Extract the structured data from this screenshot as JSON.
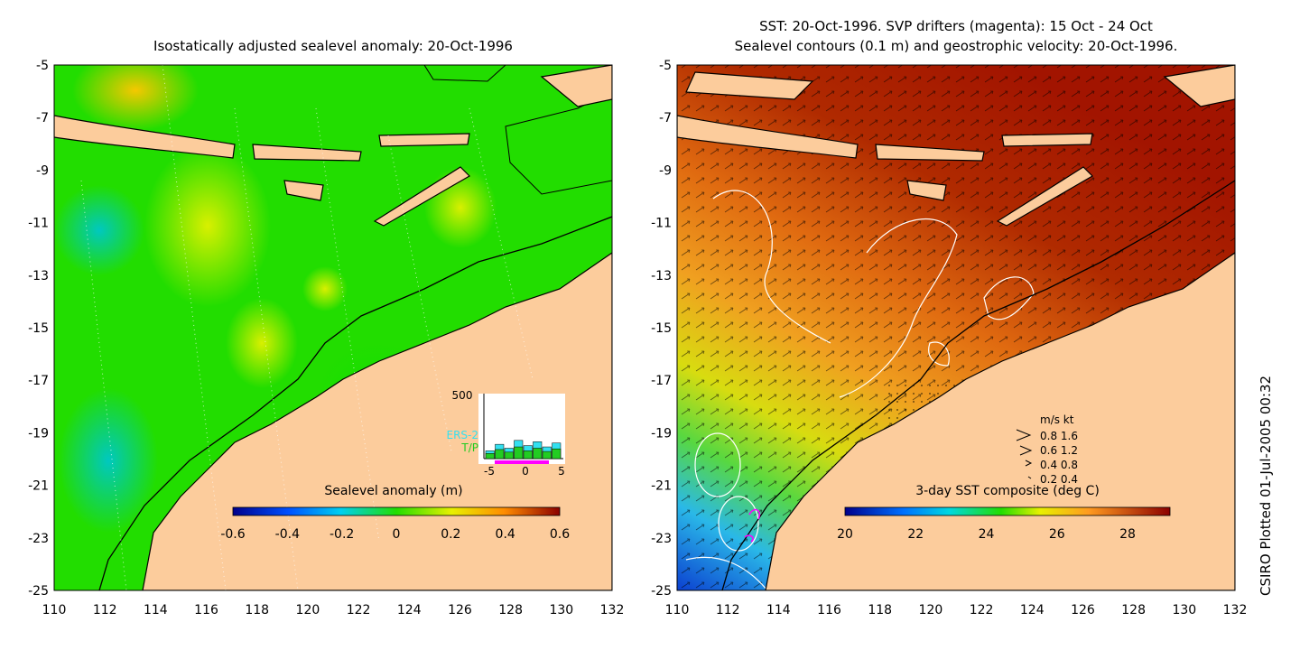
{
  "left": {
    "title": "Isostatically adjusted sealevel anomaly: 20-Oct-1996",
    "colorbar_label": "Sealevel anomaly (m)",
    "colorbar_ticks": [
      "-0.6",
      "-0.4",
      "-0.2",
      "0",
      "0.2",
      "0.4",
      "0.6"
    ],
    "inset": {
      "ymax_label": "500",
      "x_ticks": [
        "-5",
        "0",
        "5"
      ],
      "legend": [
        {
          "label": "ERS-2",
          "color": "#33e0f0"
        },
        {
          "label": "T/P",
          "color": "#22cc22"
        }
      ],
      "ers2_counts": [
        60,
        110,
        80,
        140,
        100,
        130,
        90,
        120
      ],
      "tp_counts": [
        40,
        70,
        50,
        90,
        60,
        80,
        55,
        75
      ]
    }
  },
  "right": {
    "title_line1": "SST: 20-Oct-1996. SVP drifters (magenta): 15 Oct - 24 Oct",
    "title_line2": "Sealevel contours (0.1 m) and geostrophic velocity: 20-Oct-1996.",
    "colorbar_label": "3-day SST composite (deg C)",
    "colorbar_ticks": [
      "20",
      "22",
      "24",
      "26",
      "28"
    ],
    "velocity_legend": {
      "header": "m/s  kt",
      "rows": [
        "0.8  1.6",
        "0.6  1.2",
        "0.4  0.8",
        "0.2  0.4"
      ]
    }
  },
  "axes": {
    "x_ticks": [
      "110",
      "112",
      "114",
      "116",
      "118",
      "120",
      "122",
      "124",
      "126",
      "128",
      "130",
      "132"
    ],
    "y_ticks": [
      "-5",
      "-7",
      "-9",
      "-11",
      "-13",
      "-15",
      "-17",
      "-19",
      "-21",
      "-23",
      "-25"
    ],
    "lon_range": [
      110,
      132
    ],
    "lat_range": [
      -25,
      -5
    ]
  },
  "footer": "CSIRO Plotted 01-Jul-2005 00:32",
  "colors": {
    "land": "#fccc9c",
    "ocean_green": "#22dd00",
    "sst_warm": "#a21400",
    "sst_orange": "#e87a10"
  }
}
